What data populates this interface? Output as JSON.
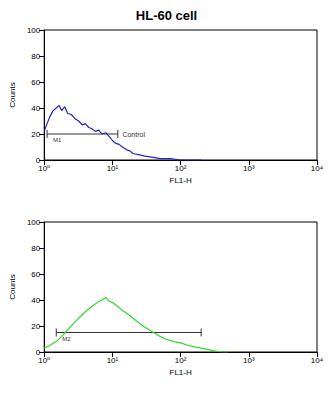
{
  "chart_data": [
    {
      "type": "line",
      "title": "HL-60 cell",
      "x": [
        1,
        1.1,
        1.2,
        1.35,
        1.5,
        1.65,
        1.8,
        2,
        2.2,
        2.5,
        2.8,
        3.2,
        3.6,
        4,
        4.5,
        5,
        5.6,
        6.3,
        7,
        8,
        9,
        10,
        11,
        12.5,
        14,
        16,
        18,
        20,
        25,
        30,
        40,
        50,
        70,
        100,
        150,
        200
      ],
      "values": [
        22,
        28,
        33,
        38,
        40,
        42,
        38,
        41,
        36,
        35,
        32,
        30,
        27,
        28,
        25,
        24,
        22,
        23,
        20,
        21,
        18,
        15,
        13,
        12,
        10,
        8,
        7,
        5,
        4,
        3,
        2,
        1,
        1,
        0,
        0,
        0
      ],
      "color": "#2323c8",
      "x_label": "FL1-H",
      "y_label": "Counts",
      "log": "x",
      "xlim": [
        1,
        10000
      ],
      "xticks": [
        {
          "value": 1,
          "label": "10⁰"
        },
        {
          "value": 10,
          "label": "10¹"
        },
        {
          "value": 100,
          "label": "10²"
        },
        {
          "value": 1000,
          "label": "10³"
        },
        {
          "value": 10000,
          "label": "10⁴"
        }
      ],
      "ylim": [
        0,
        100
      ],
      "yticks": [
        0,
        20,
        40,
        60,
        80,
        100
      ],
      "gates": [
        {
          "label": "M1",
          "range": [
            1.1,
            12
          ],
          "y": 20
        }
      ],
      "annotations": [
        {
          "text": "Control",
          "x": 14,
          "y": 20
        }
      ]
    },
    {
      "type": "line",
      "x": [
        1,
        1.2,
        1.5,
        1.8,
        2.2,
        2.7,
        3.2,
        4,
        5,
        6,
        7,
        8,
        9,
        10,
        12,
        14,
        17,
        20,
        25,
        30,
        40,
        50,
        60,
        80,
        100,
        130,
        160,
        200,
        250,
        300,
        400,
        500
      ],
      "values": [
        3,
        5,
        8,
        12,
        17,
        22,
        26,
        31,
        35,
        38,
        40,
        42,
        39,
        38,
        35,
        32,
        29,
        26,
        22,
        19,
        15,
        12,
        10,
        8,
        7,
        5,
        4,
        3,
        2,
        1,
        0,
        0
      ],
      "color": "#2ed82e",
      "x_label": "FL1-H",
      "y_label": "Counts",
      "log": "x",
      "xlim": [
        1,
        10000
      ],
      "xticks": [
        {
          "value": 1,
          "label": "10⁰"
        },
        {
          "value": 10,
          "label": "10¹"
        },
        {
          "value": 100,
          "label": "10²"
        },
        {
          "value": 1000,
          "label": "10³"
        },
        {
          "value": 10000,
          "label": "10⁴"
        }
      ],
      "ylim": [
        0,
        100
      ],
      "yticks": [
        0,
        20,
        40,
        60,
        80,
        100
      ],
      "gates": [
        {
          "label": "M2",
          "range": [
            1.5,
            200
          ],
          "y": 15
        }
      ]
    }
  ]
}
